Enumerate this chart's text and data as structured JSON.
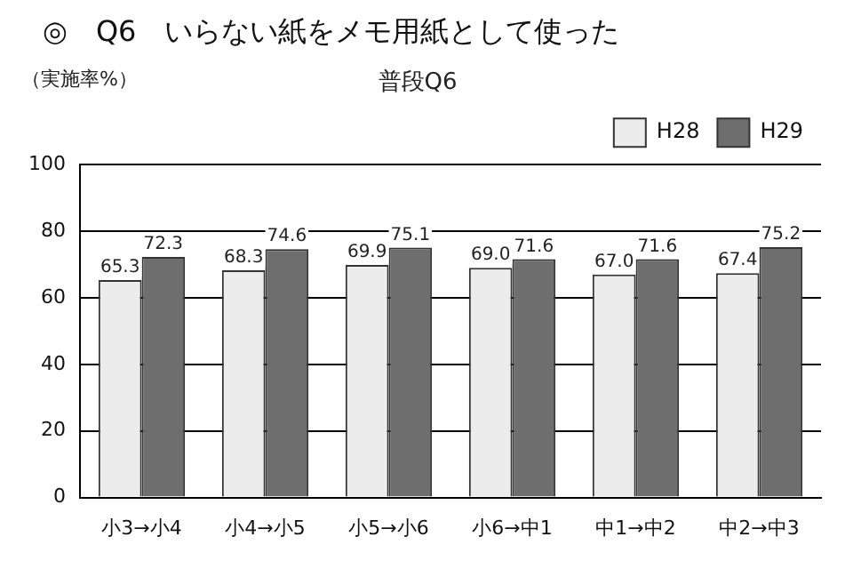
{
  "chart_data": {
    "type": "bar",
    "title": "◎　Q6　いらない紙をメモ用紙として使った",
    "subtitle": "普段Q6",
    "ylabel": "（実施率%）",
    "categories": [
      "小3→小4",
      "小4→小5",
      "小5→小6",
      "小6→中1",
      "中1→中2",
      "中2→中3"
    ],
    "series": [
      {
        "name": "H28",
        "color": "#ececec",
        "values": [
          65.3,
          68.3,
          69.9,
          69.0,
          67.0,
          67.4
        ],
        "value_labels": [
          "65.3",
          "68.3",
          "69.9",
          "69.0",
          "67.0",
          "67.4"
        ]
      },
      {
        "name": "H29",
        "color": "#6e6e6e",
        "values": [
          72.3,
          74.6,
          75.1,
          71.6,
          71.6,
          75.2
        ],
        "value_labels": [
          "72.3",
          "74.6",
          "75.1",
          "71.6",
          "71.6",
          "75.2"
        ]
      }
    ],
    "ylim": [
      0,
      100
    ],
    "yticks": [
      0,
      20,
      40,
      60,
      80,
      100
    ],
    "grid": "y",
    "legend": "top right"
  }
}
